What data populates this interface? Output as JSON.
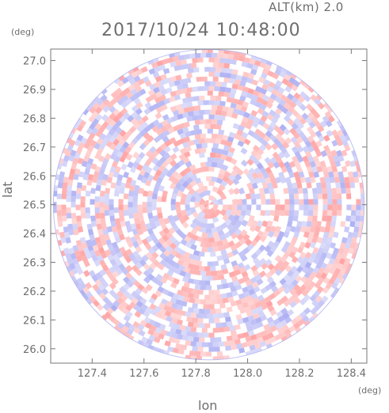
{
  "header": {
    "alt_label": "ALT(km) 2.0",
    "time_label": "2017/10/24 10:48:00"
  },
  "axes": {
    "xunit": "(deg)",
    "yunit": "(deg)",
    "xlabel": "lon",
    "ylabel": "lat"
  },
  "colors": {
    "positive": "#ff8c8c",
    "negative": "#9a9cf0",
    "frame": "#777777"
  },
  "chart_data": {
    "type": "heatmap",
    "title": "2017/10/24 10:48:00",
    "subtitle": "ALT(km) 2.0",
    "xlabel": "lon",
    "ylabel": "lat",
    "xlim": [
      127.24,
      128.46
    ],
    "ylim": [
      25.95,
      27.04
    ],
    "xticks": [
      "127.4",
      "127.6",
      "127.8",
      "128.0",
      "128.2",
      "128.4"
    ],
    "yticks": [
      "26.0",
      "26.1",
      "26.2",
      "26.3",
      "26.4",
      "26.5",
      "26.6",
      "26.7",
      "26.8",
      "26.9",
      "27.0"
    ],
    "center": {
      "lon": 127.85,
      "lat": 26.5
    },
    "radius_deg_lat": 0.54,
    "grid": false
  }
}
